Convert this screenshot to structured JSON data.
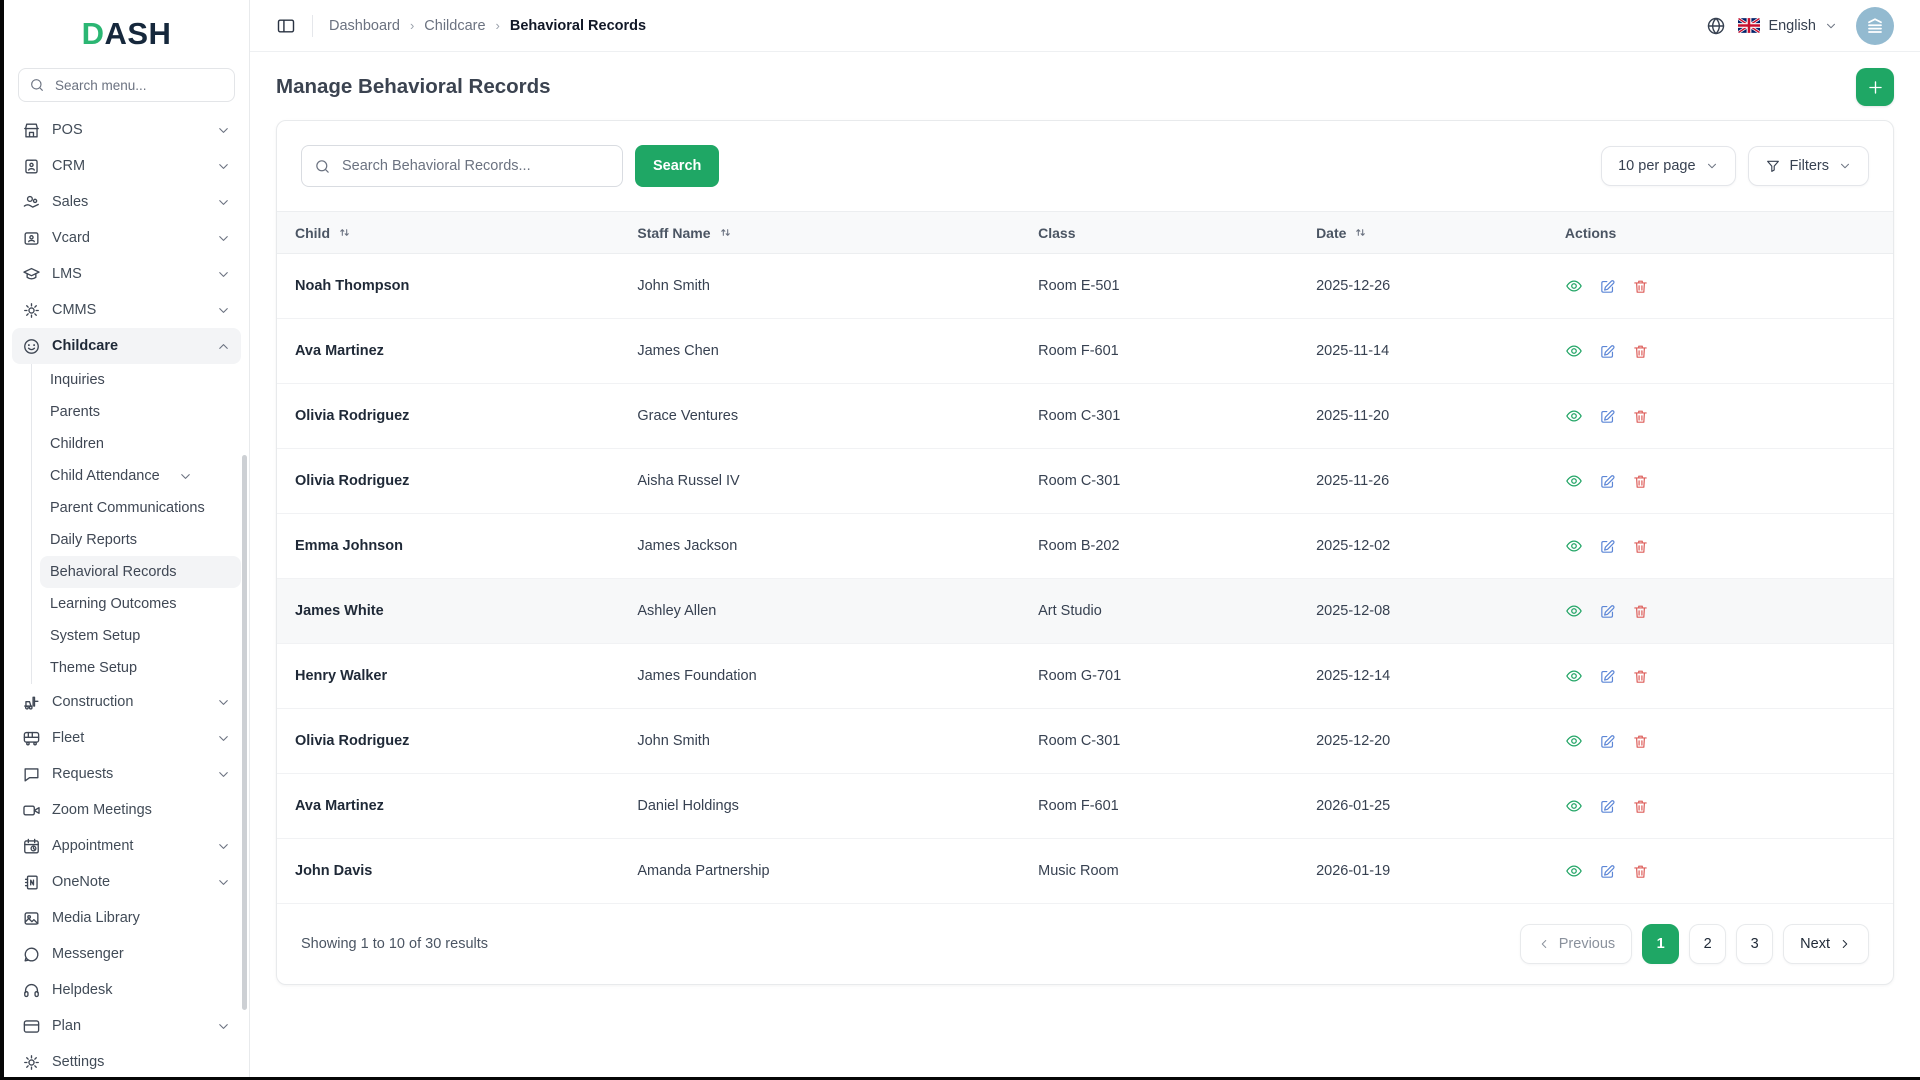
{
  "colors": {
    "accent_green": "#1fa765",
    "logo_green": "#2bb673",
    "logo_navy": "#16283c",
    "edit_blue": "#5c86d6",
    "delete_red": "#dd5e5a",
    "view_green": "#23a566"
  },
  "sidebar": {
    "logo": {
      "d": "D",
      "ash": "ASH"
    },
    "search_placeholder": "Search menu...",
    "items": [
      {
        "label": "POS",
        "icon": "storefront-icon",
        "chevron": "down"
      },
      {
        "label": "CRM",
        "icon": "id-badge-icon",
        "chevron": "down"
      },
      {
        "label": "Sales",
        "icon": "hand-coins-icon",
        "chevron": "down"
      },
      {
        "label": "Vcard",
        "icon": "contact-card-icon",
        "chevron": "down"
      },
      {
        "label": "LMS",
        "icon": "graduation-cap-icon",
        "chevron": "down"
      },
      {
        "label": "CMMS",
        "icon": "machine-gear-icon",
        "chevron": "down"
      },
      {
        "label": "Childcare",
        "icon": "smiley-icon",
        "chevron": "up",
        "active": true,
        "children": [
          {
            "label": "Inquiries"
          },
          {
            "label": "Parents"
          },
          {
            "label": "Children"
          },
          {
            "label": "Child Attendance",
            "chevron": "down"
          },
          {
            "label": "Parent Communications"
          },
          {
            "label": "Daily Reports"
          },
          {
            "label": "Behavioral Records",
            "active": true
          },
          {
            "label": "Learning Outcomes"
          },
          {
            "label": "System Setup"
          },
          {
            "label": "Theme Setup"
          }
        ]
      },
      {
        "label": "Construction",
        "icon": "forklift-icon",
        "chevron": "down"
      },
      {
        "label": "Fleet",
        "icon": "bus-icon",
        "chevron": "down"
      },
      {
        "label": "Requests",
        "icon": "chat-bubble-icon",
        "chevron": "down"
      },
      {
        "label": "Zoom Meetings",
        "icon": "video-camera-icon"
      },
      {
        "label": "Appointment",
        "icon": "calendar-clock-icon",
        "chevron": "down"
      },
      {
        "label": "OneNote",
        "icon": "notebook-icon",
        "chevron": "down"
      },
      {
        "label": "Media Library",
        "icon": "image-icon"
      },
      {
        "label": "Messenger",
        "icon": "messenger-icon"
      },
      {
        "label": "Helpdesk",
        "icon": "headset-icon"
      },
      {
        "label": "Plan",
        "icon": "credit-card-icon",
        "chevron": "down"
      },
      {
        "label": "Settings",
        "icon": "gear-icon"
      }
    ]
  },
  "header": {
    "breadcrumb": [
      "Dashboard",
      "Childcare",
      "Behavioral Records"
    ],
    "language": "English",
    "language_icons": [
      "globe-icon",
      "uk-flag-icon"
    ],
    "avatar_icon": "building-logo-icon"
  },
  "page": {
    "title": "Manage Behavioral Records"
  },
  "toolbar": {
    "search_placeholder": "Search Behavioral Records...",
    "search_button": "Search",
    "per_page": "10 per page",
    "filters": "Filters"
  },
  "table": {
    "columns": [
      {
        "label": "Child",
        "sortable": true
      },
      {
        "label": "Staff Name",
        "sortable": true
      },
      {
        "label": "Class",
        "sortable": false
      },
      {
        "label": "Date",
        "sortable": true
      },
      {
        "label": "Actions",
        "sortable": false
      }
    ],
    "rows": [
      {
        "child": "Noah Thompson",
        "staff": "John Smith",
        "class": "Room E-501",
        "date": "2025-12-26"
      },
      {
        "child": "Ava Martinez",
        "staff": "James Chen",
        "class": "Room F-601",
        "date": "2025-11-14"
      },
      {
        "child": "Olivia Rodriguez",
        "staff": "Grace Ventures",
        "class": "Room C-301",
        "date": "2025-11-20"
      },
      {
        "child": "Olivia Rodriguez",
        "staff": "Aisha Russel IV",
        "class": "Room C-301",
        "date": "2025-11-26"
      },
      {
        "child": "Emma Johnson",
        "staff": "James Jackson",
        "class": "Room B-202",
        "date": "2025-12-02"
      },
      {
        "child": "James White",
        "staff": "Ashley Allen",
        "class": "Art Studio",
        "date": "2025-12-08",
        "highlighted": true
      },
      {
        "child": "Henry Walker",
        "staff": "James Foundation",
        "class": "Room G-701",
        "date": "2025-12-14"
      },
      {
        "child": "Olivia Rodriguez",
        "staff": "John Smith",
        "class": "Room C-301",
        "date": "2025-12-20"
      },
      {
        "child": "Ava Martinez",
        "staff": "Daniel Holdings",
        "class": "Room F-601",
        "date": "2026-01-25"
      },
      {
        "child": "John Davis",
        "staff": "Amanda Partnership",
        "class": "Music Room",
        "date": "2026-01-19"
      }
    ]
  },
  "footer": {
    "summary": "Showing 1 to 10 of 30 results",
    "previous": "Previous",
    "next": "Next",
    "pages": [
      "1",
      "2",
      "3"
    ],
    "active_page": "1"
  }
}
